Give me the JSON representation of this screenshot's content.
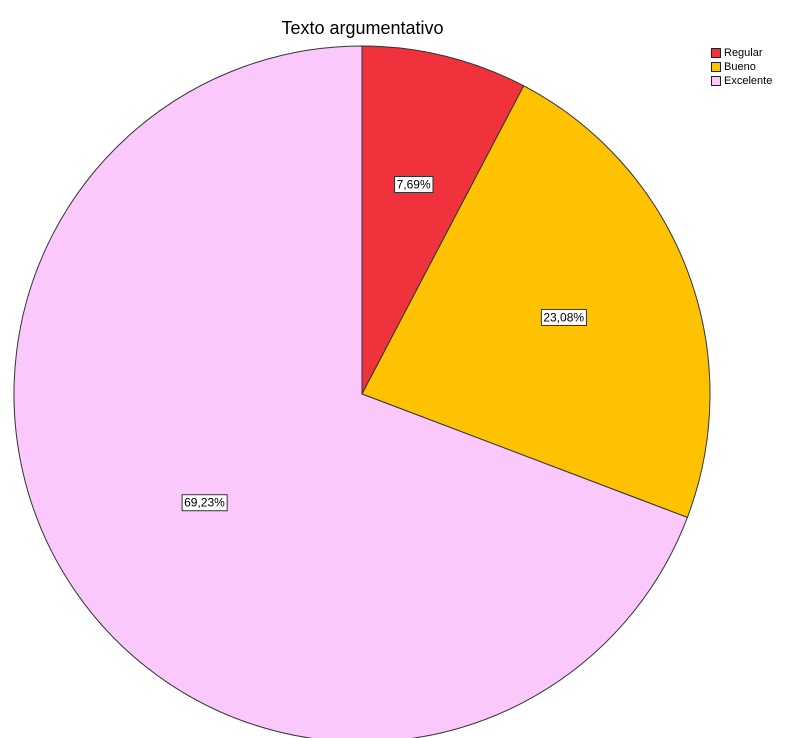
{
  "chart_data": {
    "type": "pie",
    "title": "Texto argumentativo",
    "categories": [
      "Regular",
      "Bueno",
      "Excelente"
    ],
    "values": [
      7.69,
      23.08,
      69.23
    ],
    "labels": [
      "7,69%",
      "23,08%",
      "69,23%"
    ],
    "colors": [
      "#f0323c",
      "#ffc200",
      "#fbc8fb"
    ],
    "legend_position": "top-right",
    "start_angle": "12 o'clock, clockwise"
  }
}
